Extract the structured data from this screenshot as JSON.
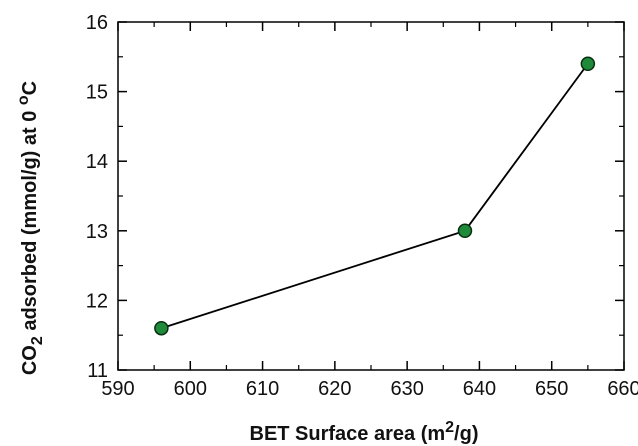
{
  "chart_data": {
    "type": "line",
    "xlabel": {
      "main": "BET Surface area (m",
      "sup": "2",
      "tail": "/g)"
    },
    "ylabel": {
      "pre": "CO",
      "sub": "2",
      "mid": " adsorbed (mmol/g) at 0 ",
      "sup": "o",
      "tail": "C"
    },
    "xlim": [
      590,
      660
    ],
    "ylim": [
      11,
      16
    ],
    "xticks": [
      590,
      600,
      610,
      620,
      630,
      640,
      650,
      660
    ],
    "yticks": [
      11,
      12,
      13,
      14,
      15,
      16
    ],
    "x_minor_step": 5,
    "y_minor_step": 0.5,
    "grid": false,
    "series": [
      {
        "x": [
          596,
          638,
          655
        ],
        "y": [
          11.6,
          13.0,
          15.4
        ],
        "line_color": "#000000",
        "marker_color": "#1f8a3a",
        "marker_edge": "#0a2e12"
      }
    ]
  }
}
